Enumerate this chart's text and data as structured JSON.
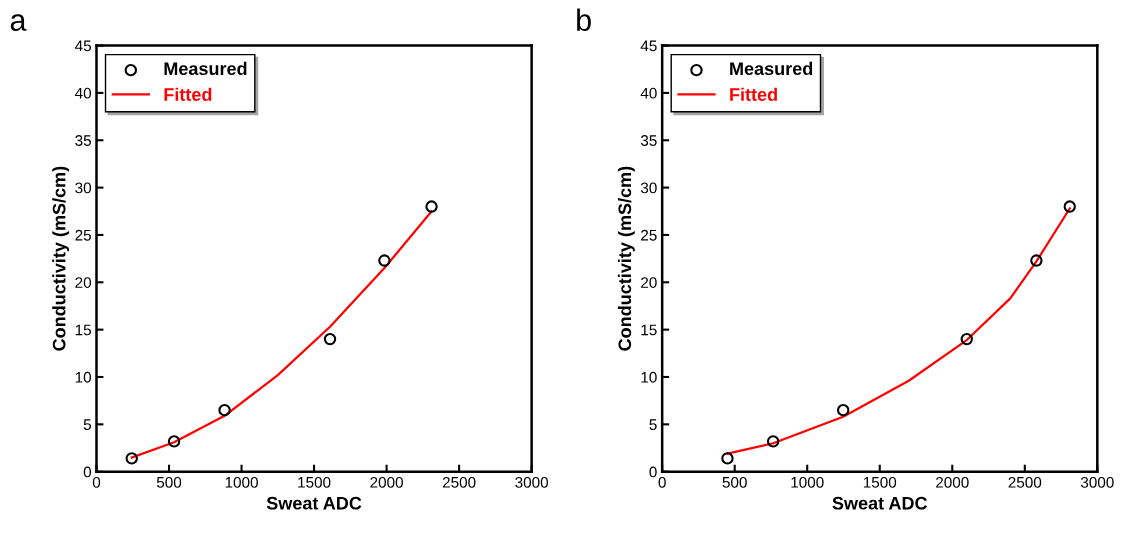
{
  "chart_data": [
    {
      "type": "scatter",
      "title": "a",
      "xlabel": "Sweat ADC",
      "ylabel": "Conductivity (mS/cm)",
      "xlim": [
        0,
        3000
      ],
      "ylim": [
        0,
        45
      ],
      "xticks": [
        0,
        500,
        1000,
        1500,
        2000,
        2500,
        3000
      ],
      "yticks": [
        0,
        5,
        10,
        15,
        20,
        25,
        30,
        35,
        40,
        45
      ],
      "grid": false,
      "legend": "top left",
      "series": [
        {
          "name": "Measured",
          "type": "scatter",
          "marker": "circle",
          "color": "#000000",
          "x": [
            243,
            535,
            883,
            1610,
            1985,
            2310
          ],
          "values": [
            1.4,
            3.2,
            6.5,
            14,
            22.3,
            28
          ]
        },
        {
          "name": "Fitted",
          "type": "line",
          "line_style": "solid",
          "color": "#ff0000",
          "x": [
            243,
            535,
            883,
            1250,
            1610,
            1985,
            2310
          ],
          "values": [
            1.5,
            3.1,
            5.9,
            10.2,
            15.3,
            21.5,
            27.5
          ]
        }
      ]
    },
    {
      "type": "scatter",
      "title": "b",
      "xlabel": "Sweat ADC",
      "ylabel": "Conductivity (mS/cm)",
      "xlim": [
        0,
        3000
      ],
      "ylim": [
        0,
        45
      ],
      "xticks": [
        0,
        500,
        1000,
        1500,
        2000,
        2500,
        3000
      ],
      "yticks": [
        0,
        5,
        10,
        15,
        20,
        25,
        30,
        35,
        40,
        45
      ],
      "grid": false,
      "legend": "top left",
      "series": [
        {
          "name": "Measured",
          "type": "scatter",
          "marker": "circle",
          "color": "#000000",
          "x": [
            450,
            765,
            1248,
            2100,
            2580,
            2810
          ],
          "values": [
            1.4,
            3.2,
            6.5,
            14,
            22.3,
            28
          ]
        },
        {
          "name": "Fitted",
          "type": "line",
          "line_style": "solid",
          "color": "#ff0000",
          "x": [
            450,
            765,
            1248,
            1700,
            2100,
            2400,
            2580,
            2810
          ],
          "values": [
            1.9,
            3.0,
            5.8,
            9.6,
            13.9,
            18.3,
            22.2,
            27.8
          ]
        }
      ]
    }
  ]
}
